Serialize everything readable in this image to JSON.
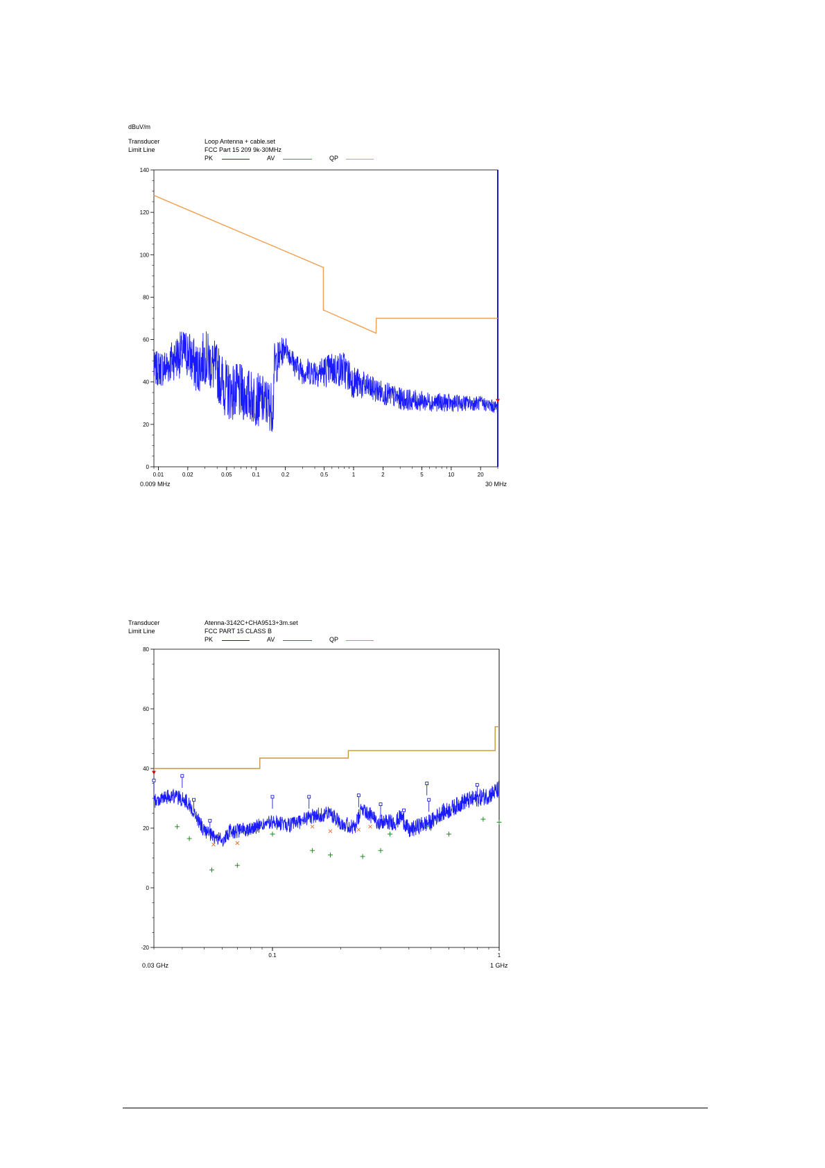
{
  "charts": [
    {
      "y_unit": "dBuV/m",
      "transducer_label": "Transducer",
      "transducer_value": "Loop Antenna + cable.set",
      "limit_label": "Limit Line",
      "limit_value": "FCC Part 15 209  9k-30MHz",
      "legend": {
        "pk": "PK",
        "av": "AV",
        "qp": "QP"
      },
      "start_label": "0.009 MHz",
      "stop_label": "30 MHz"
    },
    {
      "transducer_label": "Transducer",
      "transducer_value": "Atenna-3142C+CHA9513+3m.set",
      "limit_label": "Limit Line",
      "limit_value": "FCC PART 15 CLASS B",
      "legend": {
        "pk": "PK",
        "av": "AV",
        "qp": "QP"
      },
      "start_label": "0.03 GHz",
      "stop_label": "1 GHz"
    }
  ],
  "chart_data": [
    {
      "type": "line",
      "xscale": "log",
      "xlim": [
        0.009,
        30
      ],
      "ylim": [
        0,
        140
      ],
      "yticks": [
        0,
        20,
        40,
        60,
        80,
        100,
        120,
        140
      ],
      "xticks": [
        {
          "v": 0.01,
          "label": "0.01"
        },
        {
          "v": 0.02,
          "label": "0.02"
        },
        {
          "v": 0.05,
          "label": "0.05"
        },
        {
          "v": 0.1,
          "label": "0.1"
        },
        {
          "v": 0.2,
          "label": "0.2"
        },
        {
          "v": 0.5,
          "label": "0.5"
        },
        {
          "v": 1,
          "label": "1"
        },
        {
          "v": 2,
          "label": "2"
        },
        {
          "v": 5,
          "label": "5"
        },
        {
          "v": 10,
          "label": "10"
        },
        {
          "v": 20,
          "label": "20"
        }
      ],
      "colors": {
        "pk": "#1a1aff",
        "av": "#33aa33",
        "qp": "#f0a050",
        "marker": "#ff0000"
      },
      "limit_qp": {
        "x": [
          0.009,
          0.49,
          0.49,
          0.5,
          1.7,
          1.705,
          30
        ],
        "y": [
          128,
          94,
          73.8,
          73.8,
          63,
          70,
          70
        ]
      },
      "pk_envelope": {
        "x": [
          0.009,
          0.012,
          0.015,
          0.02,
          0.025,
          0.03,
          0.04,
          0.05,
          0.07,
          0.1,
          0.13,
          0.15,
          0.153,
          0.2,
          0.25,
          0.3,
          0.5,
          0.6,
          0.8,
          1.0,
          1.5,
          2,
          3,
          5,
          10,
          20,
          30
        ],
        "y": [
          46,
          47,
          52,
          54,
          46,
          52,
          45,
          36,
          35,
          32,
          30,
          28,
          47,
          57,
          48,
          45,
          45,
          46,
          46,
          40,
          37,
          35,
          32,
          31,
          30,
          30,
          28
        ]
      },
      "pk_spread": {
        "x": [
          0.009,
          0.02,
          0.05,
          0.15,
          0.2,
          0.8,
          1.5,
          30
        ],
        "y": [
          8,
          12,
          14,
          12,
          5,
          9,
          6,
          3
        ]
      },
      "markers": [
        {
          "x": 30,
          "y": 31
        }
      ]
    },
    {
      "type": "line",
      "xscale": "log",
      "xlim": [
        0.03,
        1
      ],
      "ylim": [
        -20,
        80
      ],
      "yticks": [
        -20,
        0,
        20,
        40,
        60,
        80
      ],
      "xticks": [
        {
          "v": 0.1,
          "label": "0.1"
        },
        {
          "v": 1,
          "label": "1"
        }
      ],
      "colors": {
        "pk": "#1a1aff",
        "av": "#228822",
        "qp": "#c8963c",
        "qp_marks": "#e07030",
        "peak_marks": "#0000cc",
        "marker": "#cc0000"
      },
      "limit_qp": {
        "x": [
          0.03,
          0.088,
          0.088,
          0.216,
          0.216,
          0.96,
          0.96,
          1
        ],
        "y": [
          40,
          40,
          43.5,
          43.5,
          46,
          46,
          54,
          54
        ]
      },
      "pk_envelope": {
        "x": [
          0.03,
          0.033,
          0.036,
          0.039,
          0.042,
          0.046,
          0.05,
          0.055,
          0.061,
          0.065,
          0.07,
          0.08,
          0.09,
          0.1,
          0.12,
          0.15,
          0.18,
          0.2,
          0.23,
          0.25,
          0.28,
          0.3,
          0.35,
          0.37,
          0.4,
          0.45,
          0.5,
          0.55,
          0.6,
          0.7,
          0.8,
          0.9,
          1.0
        ],
        "y": [
          29,
          30,
          31,
          30,
          29,
          24,
          19,
          17,
          16,
          19,
          19,
          20,
          21,
          22,
          21,
          24,
          25,
          22,
          20,
          27,
          23,
          22,
          22,
          24,
          19,
          21,
          22,
          25,
          26,
          29,
          30,
          31,
          33
        ]
      },
      "pk_spread": {
        "x": [
          0.03,
          0.1,
          1
        ],
        "y": [
          2.5,
          2.5,
          3
        ]
      },
      "peak_squares": [
        {
          "x": 0.03,
          "y": 36
        },
        {
          "x": 0.04,
          "y": 37.5
        },
        {
          "x": 0.045,
          "y": 29.5
        },
        {
          "x": 0.053,
          "y": 22.5
        },
        {
          "x": 0.1,
          "y": 30.5
        },
        {
          "x": 0.145,
          "y": 30.5
        },
        {
          "x": 0.24,
          "y": 31
        },
        {
          "x": 0.3,
          "y": 28
        },
        {
          "x": 0.38,
          "y": 26
        },
        {
          "x": 0.48,
          "y": 35
        },
        {
          "x": 0.49,
          "y": 29.5
        },
        {
          "x": 0.8,
          "y": 34.5
        }
      ],
      "qp_cross": [
        {
          "x": 0.055,
          "y": 14.5
        },
        {
          "x": 0.07,
          "y": 15
        },
        {
          "x": 0.15,
          "y": 20.5
        },
        {
          "x": 0.18,
          "y": 19
        },
        {
          "x": 0.24,
          "y": 19.5
        },
        {
          "x": 0.27,
          "y": 20.5
        }
      ],
      "av_plus": [
        {
          "x": 0.038,
          "y": 20.5
        },
        {
          "x": 0.043,
          "y": 16.5
        },
        {
          "x": 0.054,
          "y": 6
        },
        {
          "x": 0.07,
          "y": 7.5
        },
        {
          "x": 0.1,
          "y": 18
        },
        {
          "x": 0.15,
          "y": 12.5
        },
        {
          "x": 0.18,
          "y": 11
        },
        {
          "x": 0.25,
          "y": 10.5
        },
        {
          "x": 0.3,
          "y": 12.5
        },
        {
          "x": 0.33,
          "y": 18
        },
        {
          "x": 0.48,
          "y": 20.5
        },
        {
          "x": 0.6,
          "y": 18
        },
        {
          "x": 0.85,
          "y": 23
        },
        {
          "x": 1.0,
          "y": 22
        }
      ],
      "markers": [
        {
          "x": 0.03,
          "y": 38.5
        }
      ]
    }
  ]
}
